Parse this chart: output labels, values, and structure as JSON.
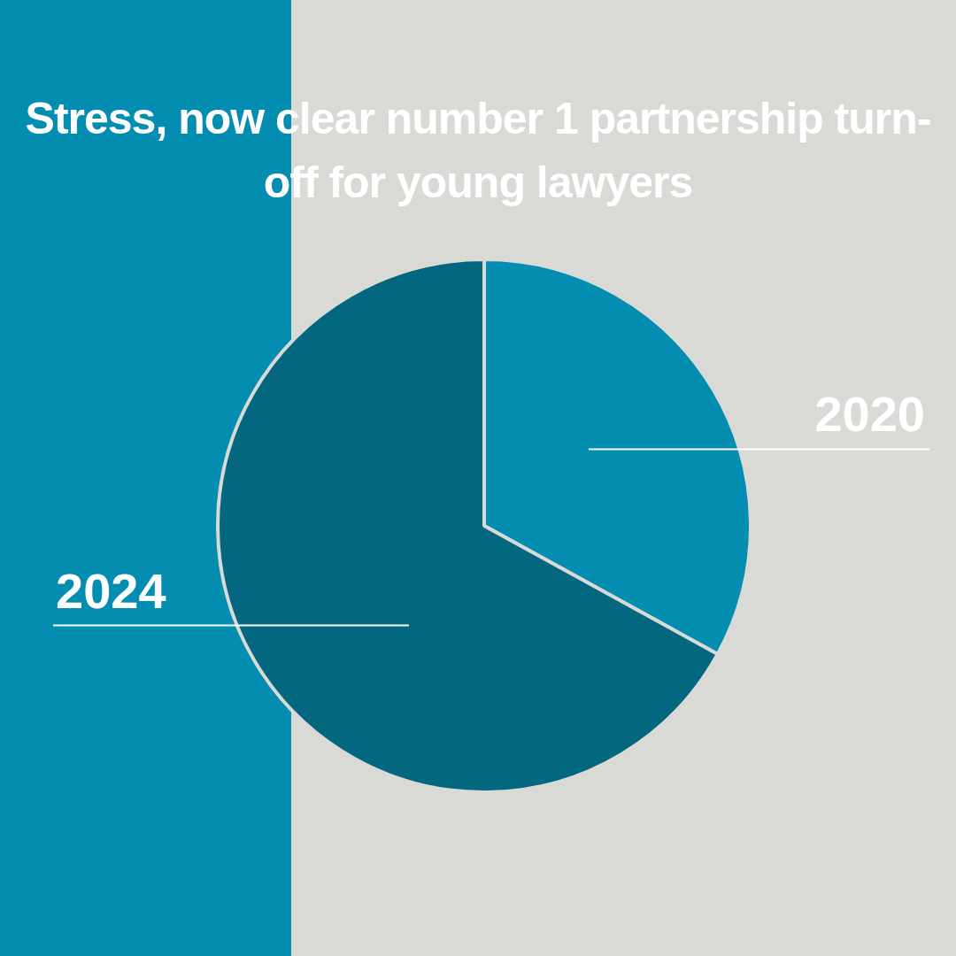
{
  "chart_data": {
    "type": "pie",
    "title": "Stress, now clear number 1 partnership turn-off for young lawyers",
    "categories": [
      "2020",
      "2024"
    ],
    "values": [
      33,
      67
    ],
    "colors": [
      "#038db0",
      "#02677f"
    ]
  }
}
